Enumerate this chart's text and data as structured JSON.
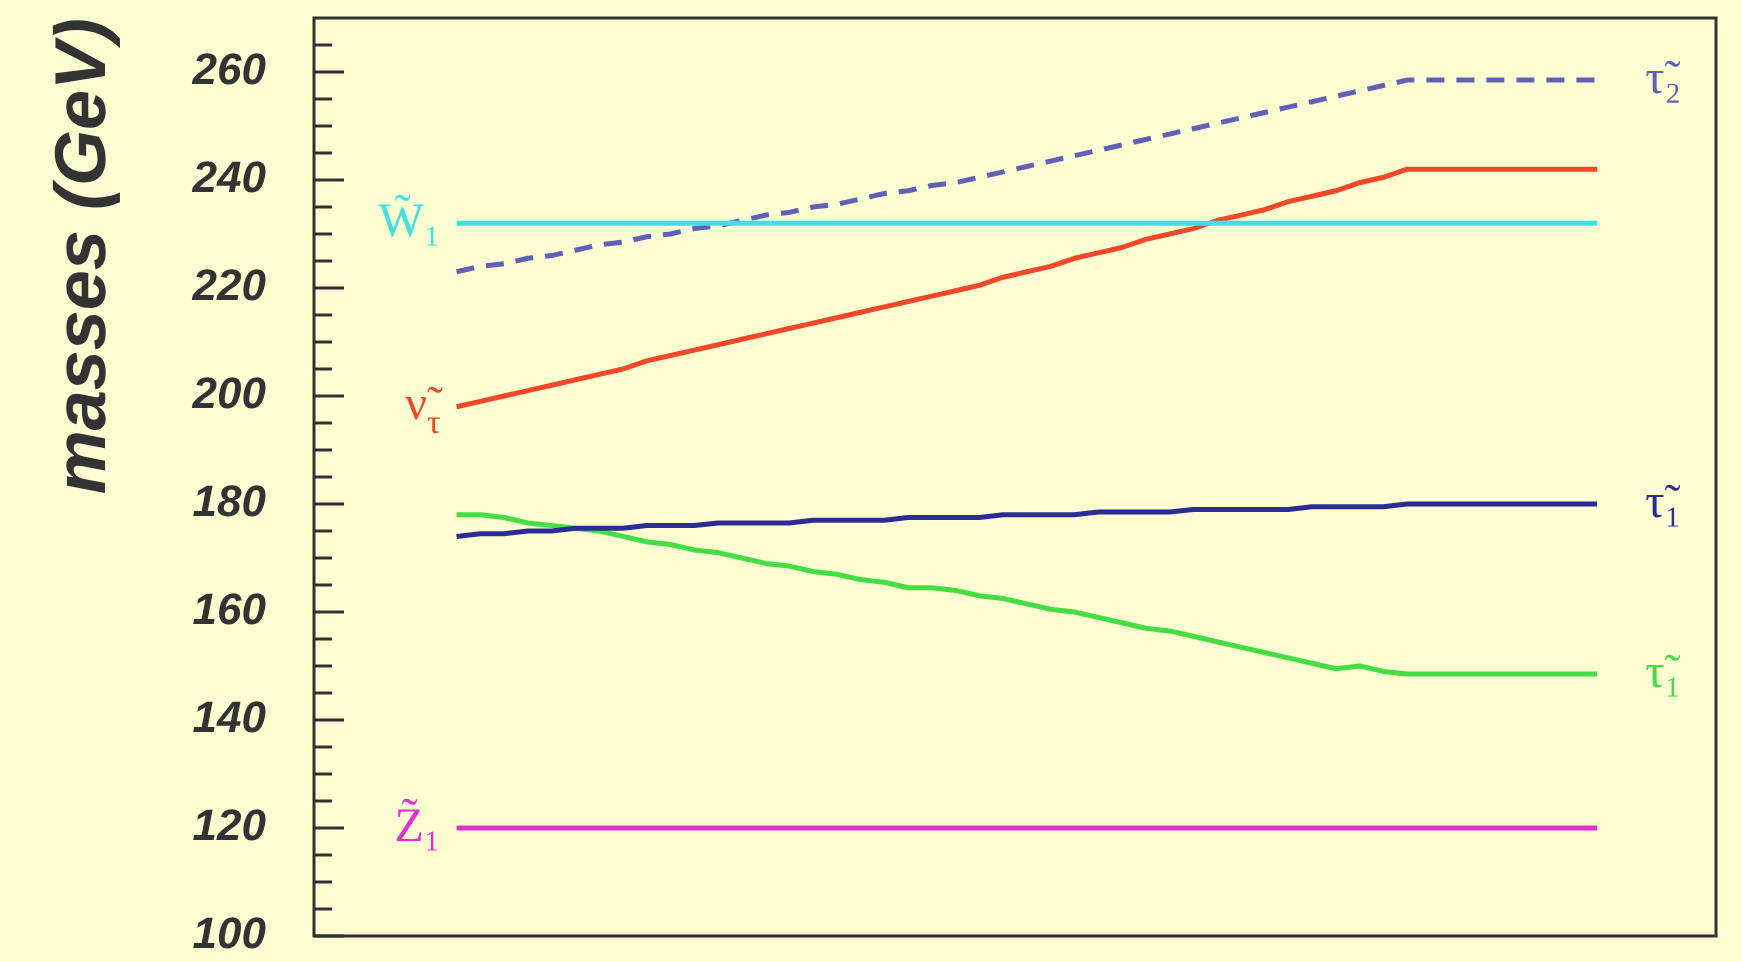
{
  "chart_data": {
    "type": "line",
    "ylabel": "masses (GeV)",
    "categories": [
      null,
      null,
      null,
      null,
      null,
      null,
      null,
      null,
      null,
      null,
      null,
      null,
      null,
      null,
      null,
      null,
      null,
      null,
      null,
      null,
      null,
      null,
      null,
      null,
      null,
      null,
      null,
      null,
      null,
      null,
      null,
      null,
      null,
      null,
      null,
      null,
      null,
      null,
      null,
      null,
      null,
      null,
      null,
      null,
      null,
      null,
      null,
      null,
      null,
      null,
      null,
      null,
      null,
      null,
      null,
      null,
      null,
      null,
      null,
      null
    ],
    "series": [
      {
        "name": "W̃₁",
        "color": "#40e0e0",
        "values": [
          null,
          null,
          null,
          null,
          null,
          null,
          232,
          232,
          232,
          232,
          232,
          232,
          232,
          232,
          232,
          232,
          232,
          232,
          232,
          232,
          232,
          232,
          232,
          232,
          232,
          232,
          232,
          232,
          232,
          232,
          232,
          232,
          232,
          232,
          232,
          232,
          232,
          232,
          232,
          232,
          232,
          232,
          232,
          232,
          232,
          232,
          232,
          232,
          232,
          232,
          232,
          232,
          232,
          232,
          232,
          null,
          null,
          null,
          null,
          null
        ]
      },
      {
        "name": "τ̃₂",
        "color": "#6060b8",
        "line_style": "dashed",
        "values": [
          null,
          null,
          null,
          null,
          null,
          null,
          223,
          224,
          224.5,
          225.5,
          226,
          227,
          228,
          228.5,
          229.5,
          230,
          231,
          231.5,
          232.5,
          233.5,
          234,
          235,
          235.5,
          236.5,
          237.5,
          238,
          239,
          239.5,
          240.5,
          241.5,
          242.5,
          243.5,
          244.5,
          245.5,
          246.5,
          247.5,
          248.5,
          249.5,
          250.5,
          251.5,
          252.5,
          253.5,
          254.5,
          255.5,
          256.5,
          257.5,
          258.5,
          258.5,
          258.5,
          258.5,
          258.5,
          258.5,
          258.5,
          258.5,
          258.5,
          null,
          null,
          null,
          null,
          null
        ]
      },
      {
        "name": "ν̃$_{τ}$",
        "color": "#f04828",
        "values": [
          null,
          null,
          null,
          null,
          null,
          null,
          198,
          199,
          200,
          201,
          202,
          203,
          204,
          205,
          206.5,
          207.5,
          208.5,
          209.5,
          210.5,
          211.5,
          212.5,
          213.5,
          214.5,
          215.5,
          216.5,
          217.5,
          218.5,
          219.5,
          220.5,
          222,
          223,
          224,
          225.5,
          226.5,
          227.5,
          229,
          230,
          231,
          232.5,
          233.5,
          234.5,
          236,
          237,
          238,
          239.5,
          240.5,
          242,
          242,
          242,
          242,
          242,
          242,
          242,
          242,
          242,
          null,
          null,
          null,
          null,
          null
        ]
      },
      {
        "name": "τ̃₁",
        "color": "#2c2c94",
        "values": [
          null,
          null,
          null,
          null,
          null,
          null,
          174,
          174.5,
          174.5,
          175,
          175,
          175.5,
          175.5,
          175.5,
          176,
          176,
          176,
          176.5,
          176.5,
          176.5,
          176.5,
          177,
          177,
          177,
          177,
          177.5,
          177.5,
          177.5,
          177.5,
          178,
          178,
          178,
          178,
          178.5,
          178.5,
          178.5,
          178.5,
          179,
          179,
          179,
          179,
          179,
          179.5,
          179.5,
          179.5,
          179.5,
          180,
          180,
          180,
          180,
          180,
          180,
          180,
          180,
          180,
          null,
          null,
          null,
          null,
          null
        ]
      },
      {
        "name": "τ̃₁",
        "color": "#44dd44",
        "values": [
          null,
          null,
          null,
          null,
          null,
          null,
          178,
          178,
          177.5,
          176.5,
          176,
          175.5,
          175,
          174,
          173,
          172.5,
          171.5,
          171,
          170,
          169,
          168.5,
          167.5,
          167,
          166,
          165.5,
          164.5,
          164.5,
          164,
          163,
          162.5,
          161.5,
          160.5,
          160,
          159,
          158,
          157,
          156.5,
          155.5,
          154.5,
          153.5,
          152.5,
          151.5,
          150.5,
          149.5,
          150,
          149,
          148.5,
          148.5,
          148.5,
          148.5,
          148.5,
          148.5,
          148.5,
          148.5,
          148.5,
          null,
          null,
          null,
          null,
          null
        ]
      },
      {
        "name": "Z̃₁",
        "color": "#e030d0",
        "values": [
          null,
          null,
          null,
          null,
          null,
          null,
          120,
          120,
          120,
          120,
          120,
          120,
          120,
          120,
          120,
          120,
          120,
          120,
          120,
          120,
          120,
          120,
          120,
          120,
          120,
          120,
          120,
          120,
          120,
          120,
          120,
          120,
          120,
          120,
          120,
          120,
          120,
          120,
          120,
          120,
          120,
          120,
          120,
          120,
          120,
          120,
          120,
          120,
          120,
          120,
          120,
          120,
          120,
          120,
          120,
          null,
          null,
          null,
          null,
          null
        ]
      }
    ],
    "ylim": [
      100,
      270
    ],
    "yticks": [
      100,
      {
        "value": 105,
        "label": null
      },
      {
        "value": 110,
        "label": null
      },
      {
        "value": 115,
        "label": null
      },
      120,
      {
        "value": 125,
        "label": null
      },
      {
        "value": 130,
        "label": null
      },
      {
        "value": 135,
        "label": null
      },
      140,
      {
        "value": 145,
        "label": null
      },
      {
        "value": 150,
        "label": null
      },
      {
        "value": 155,
        "label": null
      },
      160,
      {
        "value": 165,
        "label": null
      },
      {
        "value": 170,
        "label": null
      },
      {
        "value": 175,
        "label": null
      },
      180,
      {
        "value": 185,
        "label": null
      },
      {
        "value": 190,
        "label": null
      },
      {
        "value": 195,
        "label": null
      },
      200,
      {
        "value": 205,
        "label": null
      },
      {
        "value": 210,
        "label": null
      },
      {
        "value": 215,
        "label": null
      },
      220,
      {
        "value": 225,
        "label": null
      },
      {
        "value": 230,
        "label": null
      },
      {
        "value": 235,
        "label": null
      },
      240,
      {
        "value": 245,
        "label": null
      },
      {
        "value": 250,
        "label": null
      },
      {
        "value": 255,
        "label": null
      },
      260,
      {
        "value": 265,
        "label": null
      }
    ],
    "tick_labels": "y"
  }
}
